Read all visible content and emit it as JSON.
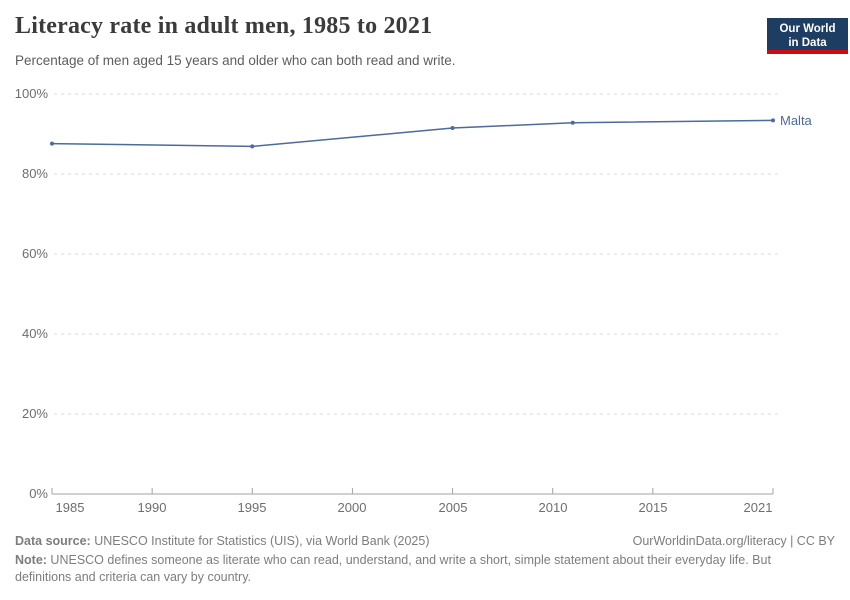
{
  "header": {
    "title": "Literacy rate in adult men, 1985 to 2021",
    "subtitle": "Percentage of men aged 15 years and older who can both read and write.",
    "logo": {
      "line1": "Our World",
      "line2": "in Data",
      "bg_color": "#1d3d63",
      "bar_color": "#d10a11"
    }
  },
  "chart_data": {
    "type": "line",
    "title": "Literacy rate in adult men, 1985 to 2021",
    "xlabel": "",
    "ylabel": "",
    "xlim": [
      1985,
      2021
    ],
    "ylim": [
      0,
      100
    ],
    "grid": "horizontal-dashed",
    "legend_position": "end-of-line-label",
    "series": [
      {
        "name": "Malta",
        "color": "#4C6A9C",
        "points": [
          {
            "x": 1985,
            "y": 87.6
          },
          {
            "x": 1995,
            "y": 86.9
          },
          {
            "x": 2005,
            "y": 91.5
          },
          {
            "x": 2011,
            "y": 92.8
          },
          {
            "x": 2021,
            "y": 93.4
          }
        ]
      }
    ],
    "end_label": "Malta",
    "y_ticks": [
      {
        "label": "100%",
        "value": 100
      },
      {
        "label": "80%",
        "value": 80
      },
      {
        "label": "60%",
        "value": 60
      },
      {
        "label": "40%",
        "value": 40
      },
      {
        "label": "20%",
        "value": 20
      },
      {
        "label": "0%",
        "value": 0
      }
    ],
    "x_ticks": [
      {
        "label": "1985",
        "year": 1985
      },
      {
        "label": "1990",
        "year": 1990
      },
      {
        "label": "1995",
        "year": 1995
      },
      {
        "label": "2000",
        "year": 2000
      },
      {
        "label": "2005",
        "year": 2005
      },
      {
        "label": "2010",
        "year": 2010
      },
      {
        "label": "2015",
        "year": 2015
      },
      {
        "label": "2021",
        "year": 2021
      }
    ]
  },
  "footer": {
    "source_label": "Data source:",
    "source_text": " UNESCO Institute for Statistics (UIS), via World Bank (2025)",
    "link_text": "OurWorldinData.org/literacy | CC BY",
    "note_label": "Note:",
    "note_text": " UNESCO defines someone as literate who can read, understand, and write a short, simple statement about their everyday life. But definitions and criteria can vary by country."
  }
}
